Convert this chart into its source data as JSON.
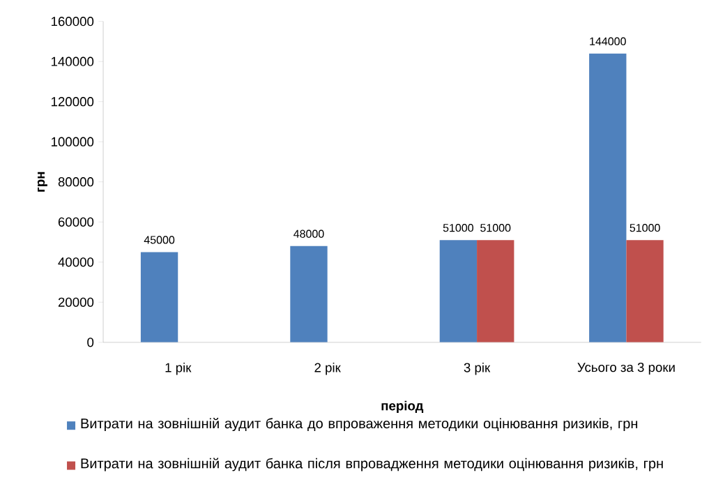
{
  "chart_data": {
    "type": "bar",
    "xlabel": "період",
    "ylabel": "грн",
    "categories": [
      "1 рік",
      "2 рік",
      "3 рік",
      "Усього за 3 роки"
    ],
    "series": [
      {
        "name": "Витрати на зовнішній аудит  банка до впроваження методики оцінювання ризиків, грн",
        "color": "#4f81bd",
        "values": [
          45000,
          48000,
          51000,
          144000
        ]
      },
      {
        "name": "Витрати на зовнішній аудит банка після впровадження методики оцінювання ризиків, грн",
        "color": "#c0504d",
        "values": [
          null,
          null,
          51000,
          51000
        ]
      }
    ],
    "ylim": [
      0,
      160000
    ],
    "yticks": [
      0,
      20000,
      40000,
      60000,
      80000,
      100000,
      120000,
      140000,
      160000
    ],
    "data_labels": true,
    "legend": "bottom",
    "grid": false
  }
}
